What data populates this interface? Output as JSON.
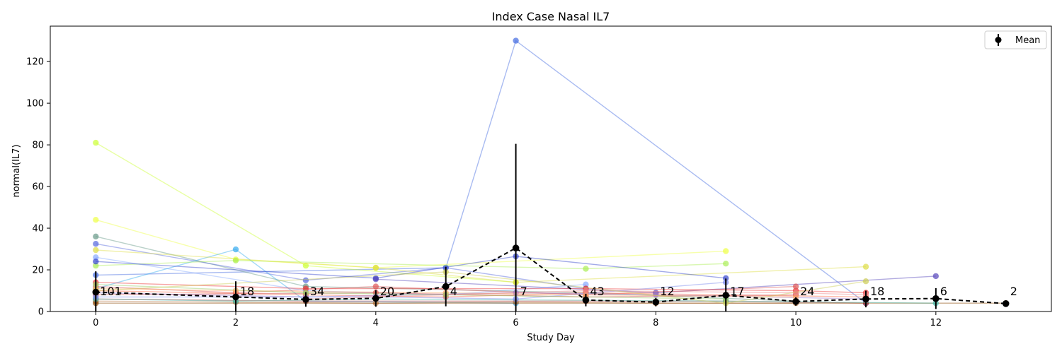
{
  "chart_data": {
    "type": "line",
    "title": "Index Case Nasal IL7",
    "xlabel": "Study Day",
    "ylabel": "normal(IL7)",
    "xlim": [
      -0.65,
      13.65
    ],
    "ylim": [
      0,
      137
    ],
    "x_ticks": [
      0,
      2,
      4,
      6,
      8,
      10,
      12
    ],
    "y_ticks": [
      0,
      20,
      40,
      60,
      80,
      100,
      120
    ],
    "grid": false,
    "legend": {
      "position": "top-right",
      "entries": [
        "Mean"
      ]
    },
    "mean_series": {
      "name": "Mean",
      "color": "#000000",
      "style": "dashed",
      "points": [
        {
          "x": 0,
          "y": 9.3,
          "err": 10,
          "n": "101"
        },
        {
          "x": 2,
          "y": 7,
          "err": 7.5,
          "n": "18"
        },
        {
          "x": 3,
          "y": 5.8,
          "err": 3.5,
          "n": "34"
        },
        {
          "x": 4,
          "y": 6.3,
          "err": 4,
          "n": "20"
        },
        {
          "x": 5,
          "y": 12,
          "err": 9.5,
          "n": "4"
        },
        {
          "x": 6,
          "y": 30.5,
          "err": 50,
          "n": "7"
        },
        {
          "x": 7,
          "y": 5.5,
          "err": 3,
          "n": "43"
        },
        {
          "x": 8,
          "y": 4.5,
          "err": 2,
          "n": "12"
        },
        {
          "x": 9,
          "y": 7.8,
          "err": 8,
          "n": "17"
        },
        {
          "x": 10,
          "y": 4.8,
          "err": 2,
          "n": "24"
        },
        {
          "x": 11,
          "y": 6,
          "err": 4,
          "n": "18"
        },
        {
          "x": 12,
          "y": 6.2,
          "err": 5,
          "n": "6"
        },
        {
          "x": 13,
          "y": 3.8,
          "err": 0,
          "n": "2"
        }
      ]
    },
    "subject_series": [
      {
        "color": "#4169e1",
        "points": [
          [
            0,
            17.5
          ],
          [
            5,
            21
          ],
          [
            6,
            130
          ],
          [
            11,
            4
          ]
        ]
      },
      {
        "color": "#88aaff",
        "points": [
          [
            0,
            26
          ],
          [
            3,
            10
          ],
          [
            5,
            8
          ],
          [
            7,
            13
          ]
        ]
      },
      {
        "color": "#ccff33",
        "points": [
          [
            0,
            81
          ],
          [
            3,
            22
          ],
          [
            6,
            14
          ]
        ]
      },
      {
        "color": "#eeff44",
        "points": [
          [
            0,
            44
          ],
          [
            2,
            25
          ],
          [
            4,
            21
          ],
          [
            9,
            29
          ]
        ]
      },
      {
        "color": "#669988",
        "points": [
          [
            0,
            36
          ],
          [
            3,
            12
          ],
          [
            7,
            9
          ],
          [
            10,
            5
          ]
        ]
      },
      {
        "color": "#5566dd",
        "points": [
          [
            0,
            32.5
          ],
          [
            3,
            15
          ],
          [
            5,
            21
          ],
          [
            7,
            11
          ]
        ]
      },
      {
        "color": "#33aaee",
        "points": [
          [
            0,
            11
          ],
          [
            2,
            29.8
          ],
          [
            3,
            5
          ],
          [
            6,
            4
          ]
        ]
      },
      {
        "color": "#aaee55",
        "points": [
          [
            0,
            22
          ],
          [
            2,
            24.5
          ],
          [
            7,
            20.5
          ],
          [
            9,
            23
          ]
        ]
      },
      {
        "color": "#dddd44",
        "points": [
          [
            0,
            29.5
          ],
          [
            4,
            21
          ],
          [
            6,
            14
          ],
          [
            11,
            21.5
          ]
        ]
      },
      {
        "color": "#3344cc",
        "points": [
          [
            0,
            24
          ],
          [
            4,
            16
          ],
          [
            6,
            26.5
          ],
          [
            9,
            16
          ]
        ]
      },
      {
        "color": "#5544bb",
        "points": [
          [
            4,
            15.5
          ],
          [
            8,
            9
          ],
          [
            12,
            17
          ]
        ]
      },
      {
        "color": "#ee3333",
        "points": [
          [
            0,
            14
          ],
          [
            3,
            11
          ],
          [
            7,
            11
          ],
          [
            10,
            10
          ],
          [
            11,
            9
          ]
        ]
      },
      {
        "color": "#dd5555",
        "points": [
          [
            0,
            12
          ],
          [
            2,
            9
          ],
          [
            4,
            12
          ],
          [
            7,
            8
          ],
          [
            10,
            12
          ]
        ]
      },
      {
        "color": "#ff6644",
        "points": [
          [
            0,
            10
          ],
          [
            3,
            8
          ],
          [
            5,
            7
          ],
          [
            7,
            9
          ],
          [
            11,
            7
          ]
        ]
      },
      {
        "color": "#cc4444",
        "points": [
          [
            0,
            8
          ],
          [
            4,
            9
          ],
          [
            7,
            7
          ],
          [
            10,
            8
          ]
        ]
      },
      {
        "color": "#aa3333",
        "points": [
          [
            0,
            6
          ],
          [
            3,
            5
          ],
          [
            7,
            5
          ],
          [
            9,
            5
          ],
          [
            11,
            4
          ]
        ]
      },
      {
        "color": "#bb7744",
        "points": [
          [
            0,
            5
          ],
          [
            2,
            4.5
          ],
          [
            4,
            4
          ],
          [
            6,
            4.5
          ],
          [
            8,
            4
          ],
          [
            10,
            4
          ]
        ]
      },
      {
        "color": "#884400",
        "points": [
          [
            0,
            4
          ],
          [
            13,
            4
          ]
        ]
      },
      {
        "color": "#44bbaa",
        "points": [
          [
            0,
            6
          ],
          [
            2,
            5
          ],
          [
            4,
            6
          ],
          [
            9,
            5
          ],
          [
            12,
            4
          ]
        ]
      },
      {
        "color": "#9977cc",
        "points": [
          [
            0,
            9
          ],
          [
            3,
            7
          ],
          [
            6,
            9
          ],
          [
            8,
            8
          ],
          [
            11,
            6
          ]
        ]
      },
      {
        "color": "#7788ee",
        "points": [
          [
            0,
            7
          ],
          [
            4,
            7
          ],
          [
            6,
            6
          ],
          [
            9,
            14
          ]
        ]
      },
      {
        "color": "#ffaa66",
        "points": [
          [
            0,
            11
          ],
          [
            2,
            10
          ],
          [
            5,
            9
          ],
          [
            7,
            8
          ],
          [
            10,
            7
          ]
        ]
      },
      {
        "color": "#99cc66",
        "points": [
          [
            0,
            13
          ],
          [
            3,
            9
          ],
          [
            5,
            8
          ],
          [
            9,
            6
          ]
        ]
      },
      {
        "color": "#ee8888",
        "points": [
          [
            3,
            6
          ],
          [
            7,
            10
          ],
          [
            10,
            9
          ],
          [
            11,
            8
          ]
        ]
      },
      {
        "color": "#cccc55",
        "points": [
          [
            0,
            10
          ],
          [
            5,
            19
          ],
          [
            9,
            4
          ],
          [
            11,
            14.5
          ]
        ]
      }
    ]
  }
}
